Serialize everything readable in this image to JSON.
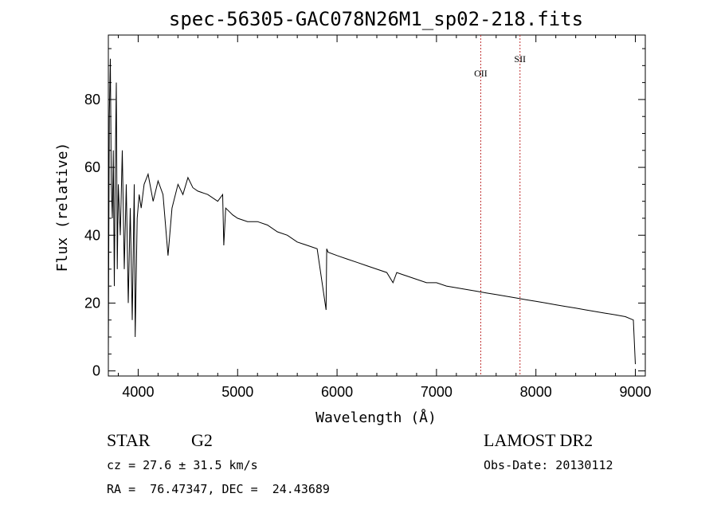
{
  "chart_data": {
    "type": "line",
    "title": "spec-56305-GAC078N26M1_sp02-218.fits",
    "xlabel": "Wavelength (Å)",
    "ylabel": "Flux (relative)",
    "xlim": [
      3700,
      9100
    ],
    "ylim": [
      -1.5,
      99
    ],
    "xticks": [
      4000,
      5000,
      6000,
      7000,
      8000,
      9000
    ],
    "yticks": [
      0,
      20,
      40,
      60,
      80
    ],
    "grid": false,
    "series": [
      {
        "x": [
          3700,
          3710,
          3720,
          3730,
          3740,
          3750,
          3760,
          3770,
          3780,
          3790,
          3800,
          3820,
          3840,
          3860,
          3880,
          3900,
          3920,
          3940,
          3960,
          3970,
          3990,
          4010,
          4030,
          4060,
          4100,
          4150,
          4200,
          4250,
          4300,
          4340,
          4400,
          4450,
          4500,
          4550,
          4600,
          4700,
          4800,
          4850,
          4861,
          4880,
          4950,
          5000,
          5100,
          5200,
          5300,
          5400,
          5500,
          5600,
          5700,
          5800,
          5890,
          5896,
          5910,
          6000,
          6100,
          6200,
          6300,
          6400,
          6500,
          6563,
          6600,
          6700,
          6800,
          6900,
          7000,
          7100,
          7200,
          7300,
          7400,
          7500,
          7600,
          7700,
          7800,
          7900,
          8000,
          8100,
          8200,
          8300,
          8400,
          8500,
          8600,
          8700,
          8800,
          8900,
          8980,
          9000
        ],
        "y": [
          5,
          75,
          92,
          55,
          45,
          65,
          25,
          60,
          85,
          30,
          55,
          40,
          65,
          30,
          55,
          20,
          48,
          15,
          55,
          10,
          45,
          52,
          48,
          55,
          58,
          50,
          56,
          52,
          34,
          48,
          55,
          52,
          57,
          54,
          53,
          52,
          50,
          52,
          37,
          48,
          46,
          45,
          44,
          44,
          43,
          41,
          40,
          38,
          37,
          36,
          18,
          36,
          35,
          34,
          33,
          32,
          31,
          30,
          29,
          26,
          29,
          28,
          27,
          26,
          26,
          25,
          24.5,
          24,
          23.5,
          23,
          22.5,
          22,
          21.5,
          21,
          20.5,
          20,
          19.5,
          19,
          18.5,
          18,
          17.5,
          17,
          16.5,
          16,
          15,
          2
        ]
      }
    ],
    "annotations": [
      {
        "label": "OII",
        "x": 7445
      },
      {
        "label": "SII",
        "x": 7840
      }
    ]
  },
  "info": {
    "object_class": "STAR",
    "subclass": "G2",
    "survey": "LAMOST DR2",
    "cz": "cz = 27.6 ± 31.5 km/s",
    "obs_date": "Obs-Date: 20130112",
    "coords": "RA =  76.47347, DEC =  24.43689"
  },
  "colors": {
    "spectrum": "#000000",
    "marker_line": "#c03030"
  }
}
